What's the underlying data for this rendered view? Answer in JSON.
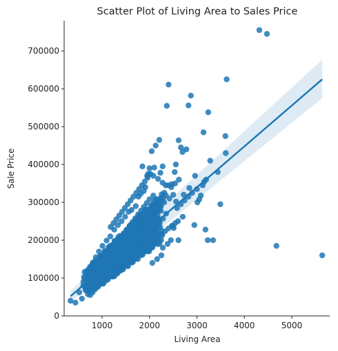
{
  "chart_data": {
    "type": "scatter",
    "title": "Scatter Plot of Living Area to Sales Price",
    "xlabel": "Living Area",
    "ylabel": "Sale Price",
    "xlim": [
      200,
      5800
    ],
    "ylim": [
      0,
      780000
    ],
    "xticks": [
      1000,
      2000,
      3000,
      4000,
      5000
    ],
    "yticks": [
      0,
      100000,
      200000,
      300000,
      400000,
      500000,
      600000,
      700000
    ],
    "grid": false,
    "legend": "none",
    "colors": {
      "points": "#1f77b4",
      "regression_line": "#1f77b4",
      "confidence_band": "#1f77b4"
    },
    "regression": {
      "x_start": 334,
      "y_start": 52000,
      "x_end": 5642,
      "y_end": 625000,
      "band_low_start": 38000,
      "band_high_start": 66000,
      "band_low_end": 575000,
      "band_high_end": 677000
    },
    "series": [
      {
        "x": [
          4316,
          4476,
          5642,
          4676,
          3627,
          3493,
          3600,
          3608,
          3279,
          3238,
          3228,
          3138,
          3194,
          3082,
          2945,
          2872,
          2822,
          2777,
          2662,
          2696,
          2614,
          2555,
          2531,
          2469,
          2402,
          2365,
          2276,
          2229,
          2206,
          2130,
          2100,
          2046,
          2000,
          1949,
          1912,
          1880,
          1816,
          1767,
          1710,
          1622,
          1558,
          1486,
          1410,
          1334,
          1256,
          1174,
          1094,
          1008,
          934,
          868,
          802,
          734,
          668,
          605,
          520,
          438,
          334,
          2341,
          2347,
          2275,
          2180,
          2082,
          1970,
          1850,
          2400,
          2540,
          2620,
          2720,
          2840,
          2960,
          3050,
          3150,
          3010,
          3340,
          3180,
          3440,
          1950,
          2090,
          2200,
          2350,
          2450,
          2280,
          2380,
          2510,
          2610,
          2250,
          2160,
          2060,
          2020,
          2130,
          2290,
          2460,
          2560,
          1730,
          1640,
          1520,
          1460,
          1390,
          1330,
          1270,
          1200,
          1140,
          1080,
          1030,
          980,
          920,
          870,
          820,
          770,
          720,
          690,
          650,
          1240,
          1300,
          1360,
          1420,
          1480,
          1540,
          1600,
          1660,
          1720,
          1780,
          1840,
          1900,
          1960,
          1250,
          1310,
          1370,
          1430,
          1490,
          1550,
          1610,
          1670,
          1730,
          1790,
          1850,
          1910,
          1120,
          1180,
          1060,
          1000,
          950,
          900,
          850,
          800,
          750,
          1220,
          1280,
          1340,
          1400,
          1460,
          1520,
          1580,
          1640,
          1700,
          1760,
          1820,
          1880,
          1940,
          2000,
          2080,
          1160,
          1210,
          1320,
          1380,
          1440,
          1500,
          1560,
          1620,
          1680,
          1740,
          1800,
          1860,
          1920,
          1980,
          2040,
          960,
          1020,
          1100,
          1150,
          1190,
          1230,
          1290,
          1350,
          1410,
          1470,
          1530,
          1590,
          1650,
          1710,
          1770,
          1830,
          1890,
          1260,
          1320,
          1380,
          1440,
          1500,
          1560,
          1620,
          1680,
          1740,
          1800,
          1860,
          1920,
          1980,
          2050,
          2120,
          2190,
          2260,
          2330,
          2400,
          2470,
          2540,
          1180,
          1240,
          1300,
          1360,
          1420,
          1480,
          1540,
          1600,
          1660,
          1720,
          1780,
          1840,
          1900,
          1960,
          2020,
          2150,
          2240,
          2310,
          2420,
          2500,
          2580,
          2660,
          2740,
          2820,
          2900,
          3000,
          3120,
          2700,
          2600,
          2500
        ],
        "y": [
          755000,
          745000,
          160000,
          185000,
          625000,
          295000,
          475000,
          430000,
          410000,
          538000,
          200000,
          485000,
          360000,
          318000,
          240000,
          582000,
          556000,
          440000,
          445000,
          433000,
          464000,
          400000,
          380000,
          348000,
          611000,
          555000,
          395000,
          378000,
          465000,
          450000,
          392000,
          435000,
          390000,
          370000,
          340000,
          330000,
          323000,
          315000,
          290000,
          280000,
          275000,
          262000,
          250000,
          240000,
          228000,
          210000,
          199000,
          185000,
          170000,
          155000,
          140000,
          125000,
          110000,
          90000,
          62000,
          35000,
          40000,
          345000,
          318000,
          352000,
          362000,
          370000,
          375000,
          395000,
          345000,
          350000,
          360000,
          320000,
          338000,
          370000,
          308000,
          354000,
          300000,
          200000,
          228000,
          380000,
          260000,
          240000,
          250000,
          270000,
          200000,
          180000,
          190000,
          232000,
          200000,
          160000,
          150000,
          140000,
          260000,
          290000,
          310000,
          340000,
          302000,
          245000,
          235000,
          225000,
          218000,
          210000,
          200000,
          192000,
          180000,
          170000,
          162000,
          152000,
          142000,
          132000,
          122000,
          115000,
          105000,
          95000,
          85000,
          78000,
          140000,
          150000,
          160000,
          170000,
          180000,
          190000,
          200000,
          210000,
          220000,
          230000,
          240000,
          250000,
          260000,
          120000,
          130000,
          140000,
          150000,
          160000,
          170000,
          180000,
          190000,
          200000,
          210000,
          220000,
          230000,
          110000,
          118000,
          100000,
          92000,
          86000,
          78000,
          70000,
          62000,
          55000,
          178000,
          188000,
          198000,
          208000,
          218000,
          228000,
          238000,
          248000,
          258000,
          268000,
          278000,
          288000,
          298000,
          308000,
          318000,
          155000,
          162000,
          168000,
          176000,
          184000,
          192000,
          200000,
          208000,
          216000,
          224000,
          232000,
          240000,
          248000,
          256000,
          264000,
          128000,
          136000,
          144000,
          132000,
          142000,
          152000,
          162000,
          172000,
          182000,
          192000,
          202000,
          212000,
          222000,
          232000,
          242000,
          252000,
          262000,
          105000,
          112000,
          119000,
          126000,
          133000,
          140000,
          147000,
          154000,
          161000,
          168000,
          175000,
          182000,
          189000,
          196000,
          203000,
          210000,
          217000,
          224000,
          231000,
          238000,
          245000,
          235000,
          245000,
          255000,
          265000,
          275000,
          285000,
          295000,
          305000,
          315000,
          325000,
          335000,
          345000,
          355000,
          365000,
          375000,
          280000,
          290000,
          300000,
          310000,
          320000,
          285000,
          295000,
          305000,
          315000,
          325000,
          335000,
          345000,
          262000,
          250000,
          238000
        ]
      }
    ]
  }
}
